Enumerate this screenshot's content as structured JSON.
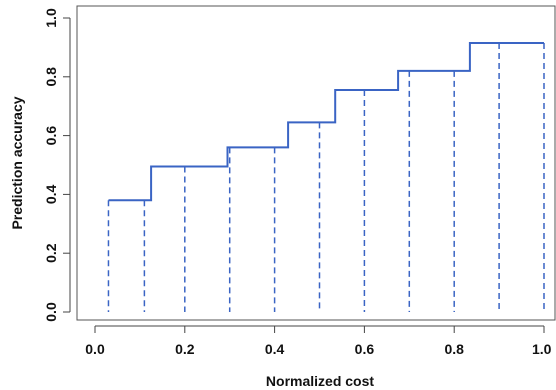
{
  "chart_data": {
    "type": "line",
    "title": "",
    "xlabel": "Normalized cost",
    "ylabel": "Prediction accuracy",
    "xlim": [
      0.0,
      1.0
    ],
    "ylim": [
      0.0,
      1.0
    ],
    "x_ticks": [
      "0.0",
      "0.2",
      "0.4",
      "0.6",
      "0.8",
      "1.0"
    ],
    "y_ticks": [
      "0.0",
      "0.2",
      "0.4",
      "0.6",
      "0.8",
      "1.0"
    ],
    "grid": false,
    "legend": "none",
    "series": [
      {
        "style": "step",
        "color": "#3a64c4",
        "points": [
          {
            "x": 0.03,
            "y": 0.38
          },
          {
            "x": 0.125,
            "y": 0.38
          },
          {
            "x": 0.125,
            "y": 0.495
          },
          {
            "x": 0.295,
            "y": 0.495
          },
          {
            "x": 0.295,
            "y": 0.56
          },
          {
            "x": 0.43,
            "y": 0.56
          },
          {
            "x": 0.43,
            "y": 0.645
          },
          {
            "x": 0.535,
            "y": 0.645
          },
          {
            "x": 0.535,
            "y": 0.755
          },
          {
            "x": 0.675,
            "y": 0.755
          },
          {
            "x": 0.675,
            "y": 0.82
          },
          {
            "x": 0.835,
            "y": 0.82
          },
          {
            "x": 0.835,
            "y": 0.915
          },
          {
            "x": 1.0,
            "y": 0.915
          }
        ]
      }
    ],
    "dashed_drops": {
      "color": "#3a64c4",
      "x": [
        0.03,
        0.11,
        0.2,
        0.3,
        0.4,
        0.5,
        0.6,
        0.7,
        0.8,
        0.9,
        1.0
      ]
    }
  }
}
